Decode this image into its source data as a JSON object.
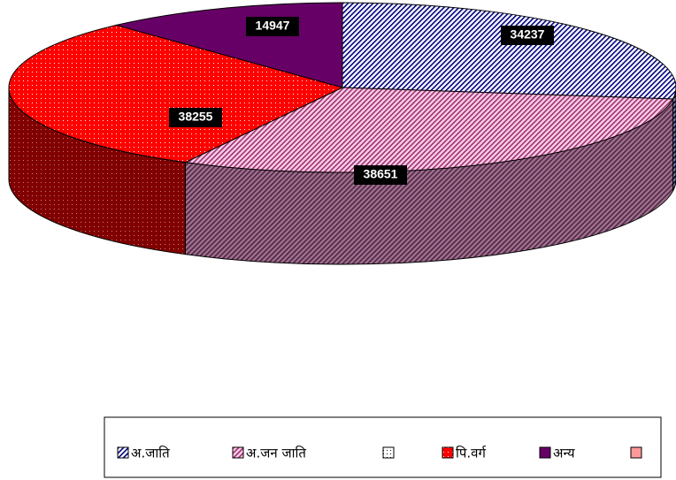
{
  "chart_data": {
    "type": "pie",
    "categories": [
      "अ.जाति",
      "अ.जन जाति",
      null,
      "पि.वर्ग",
      "अन्य",
      null
    ],
    "values": [
      34237,
      38651,
      null,
      38255,
      14947,
      null
    ],
    "colors": [
      "#000080",
      "#ff99cc",
      "#ffffff",
      "#ff0000",
      "#660066",
      "#ff9999"
    ],
    "legend": "bottom"
  }
}
